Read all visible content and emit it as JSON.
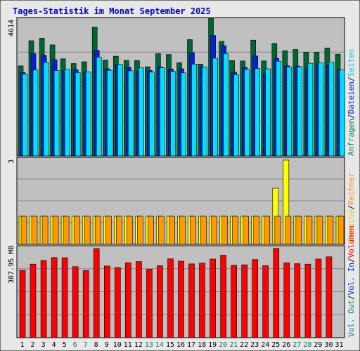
{
  "title": "Tages-Statistik im Monat September 2025",
  "colors": {
    "hits": "#006633",
    "files": "#0022dd",
    "pages": "#00e0ff",
    "visits": "#ffff00",
    "sites": "#ff9900",
    "kbytes": "#ff0000",
    "title": "#0000cc",
    "pane_bg": "#c0c0c0",
    "day_weekday": "#000000",
    "day_weekend": "#00805a"
  },
  "legend_top": [
    {
      "text": "Anfragen",
      "color": "#00805a"
    },
    {
      "text": "/",
      "color": "#000000"
    },
    {
      "text": "Dateien",
      "color": "#0022dd"
    },
    {
      "text": "/",
      "color": "#000000"
    },
    {
      "text": "Seiten",
      "color": "#00ccee"
    }
  ],
  "legend_mid": [
    {
      "text": "Besuche",
      "color": "#cccc00"
    },
    {
      "text": "/",
      "color": "#000000"
    },
    {
      "text": "Rechner",
      "color": "#ff8800"
    }
  ],
  "legend_bot": [
    {
      "text": "Vol. Out",
      "color": "#008080"
    },
    {
      "text": "/",
      "color": "#000000"
    },
    {
      "text": "Vol. In",
      "color": "#0022dd"
    },
    {
      "text": "/",
      "color": "#000000"
    },
    {
      "text": "Volumen",
      "color": "#ff0000"
    }
  ],
  "chart_data": [
    {
      "type": "bar",
      "name": "Anfragen / Dateien / Seiten",
      "x": [
        1,
        2,
        3,
        4,
        5,
        6,
        7,
        8,
        9,
        10,
        11,
        12,
        13,
        14,
        15,
        16,
        17,
        18,
        19,
        20,
        21,
        22,
        23,
        24,
        25,
        26,
        27,
        28,
        29,
        30,
        31
      ],
      "ymax_label": "4614",
      "ylim": [
        0,
        4614
      ],
      "series": [
        {
          "name": "Anfragen",
          "values": [
            3080,
            3940,
            4030,
            3800,
            3320,
            3160,
            3220,
            4410,
            3280,
            3410,
            3270,
            3260,
            3050,
            3500,
            3470,
            3190,
            3980,
            3140,
            4700,
            3920,
            3260,
            3250,
            3960,
            3250,
            3850,
            3600,
            3640,
            3550,
            3550,
            3690,
            3480
          ]
        },
        {
          "name": "Dateien",
          "values": [
            2850,
            3500,
            3440,
            3290,
            2920,
            2950,
            2870,
            3610,
            2980,
            3130,
            3030,
            2900,
            2920,
            3040,
            2970,
            2980,
            3530,
            3040,
            4120,
            3770,
            2860,
            3030,
            3420,
            2820,
            3340,
            3080,
            3070,
            3010,
            3150,
            3110,
            2940
          ]
        },
        {
          "name": "Seiten",
          "values": [
            2800,
            2940,
            3200,
            2920,
            2970,
            2850,
            2870,
            3380,
            2930,
            3130,
            2910,
            3010,
            2870,
            3020,
            2890,
            2840,
            3140,
            3040,
            3340,
            3500,
            2780,
            2960,
            2990,
            2980,
            3240,
            3040,
            3050,
            3170,
            3180,
            3210,
            2940
          ]
        }
      ]
    },
    {
      "type": "bar",
      "name": "Besuche / Rechner",
      "x": [
        1,
        2,
        3,
        4,
        5,
        6,
        7,
        8,
        9,
        10,
        11,
        12,
        13,
        14,
        15,
        16,
        17,
        18,
        19,
        20,
        21,
        22,
        23,
        24,
        25,
        26,
        27,
        28,
        29,
        30,
        31
      ],
      "ymax_label": "3",
      "ylim": [
        0,
        3
      ],
      "series": [
        {
          "name": "Besuche",
          "values": [
            1,
            1,
            1,
            1,
            1,
            1,
            1,
            1,
            1,
            1,
            1,
            1,
            1,
            1,
            1,
            1,
            1,
            1,
            1,
            1,
            1,
            1,
            1,
            1,
            2,
            3,
            1,
            1,
            1,
            1,
            1
          ]
        },
        {
          "name": "Rechner",
          "values": [
            1,
            1,
            1,
            1,
            1,
            1,
            1,
            1,
            1,
            1,
            1,
            1,
            1,
            1,
            1,
            1,
            1,
            1,
            1,
            1,
            1,
            1,
            1,
            1,
            1,
            1,
            1,
            1,
            1,
            1,
            1
          ]
        }
      ]
    },
    {
      "type": "bar",
      "name": "Volumen / Vol. In / Vol. Out",
      "x": [
        1,
        2,
        3,
        4,
        5,
        6,
        7,
        8,
        9,
        10,
        11,
        12,
        13,
        14,
        15,
        16,
        17,
        18,
        19,
        20,
        21,
        22,
        23,
        24,
        25,
        26,
        27,
        28,
        29,
        30,
        31
      ],
      "ymax_label": "387.95 MB",
      "ylim": [
        0,
        387.95
      ],
      "series": [
        {
          "name": "Volumen",
          "values": [
            293,
            320,
            336,
            349,
            348,
            309,
            292,
            388,
            312,
            305,
            326,
            331,
            298,
            313,
            343,
            333,
            321,
            324,
            342,
            359,
            315,
            317,
            340,
            313,
            389,
            326,
            322,
            320,
            342,
            352,
            0
          ]
        }
      ]
    }
  ],
  "days": [
    {
      "label": "1",
      "weekend": false
    },
    {
      "label": "2",
      "weekend": false
    },
    {
      "label": "3",
      "weekend": false
    },
    {
      "label": "4",
      "weekend": false
    },
    {
      "label": "5",
      "weekend": false
    },
    {
      "label": "6",
      "weekend": true
    },
    {
      "label": "7",
      "weekend": true
    },
    {
      "label": "8",
      "weekend": false
    },
    {
      "label": "9",
      "weekend": false
    },
    {
      "label": "10",
      "weekend": false
    },
    {
      "label": "11",
      "weekend": false
    },
    {
      "label": "12",
      "weekend": false
    },
    {
      "label": "13",
      "weekend": true
    },
    {
      "label": "14",
      "weekend": true
    },
    {
      "label": "15",
      "weekend": false
    },
    {
      "label": "16",
      "weekend": false
    },
    {
      "label": "17",
      "weekend": false
    },
    {
      "label": "18",
      "weekend": false
    },
    {
      "label": "19",
      "weekend": false
    },
    {
      "label": "20",
      "weekend": true
    },
    {
      "label": "21",
      "weekend": true
    },
    {
      "label": "22",
      "weekend": false
    },
    {
      "label": "23",
      "weekend": false
    },
    {
      "label": "24",
      "weekend": false
    },
    {
      "label": "25",
      "weekend": false
    },
    {
      "label": "26",
      "weekend": false
    },
    {
      "label": "27",
      "weekend": true
    },
    {
      "label": "28",
      "weekend": true
    },
    {
      "label": "29",
      "weekend": false
    },
    {
      "label": "30",
      "weekend": false
    },
    {
      "label": "31",
      "weekend": false
    }
  ]
}
